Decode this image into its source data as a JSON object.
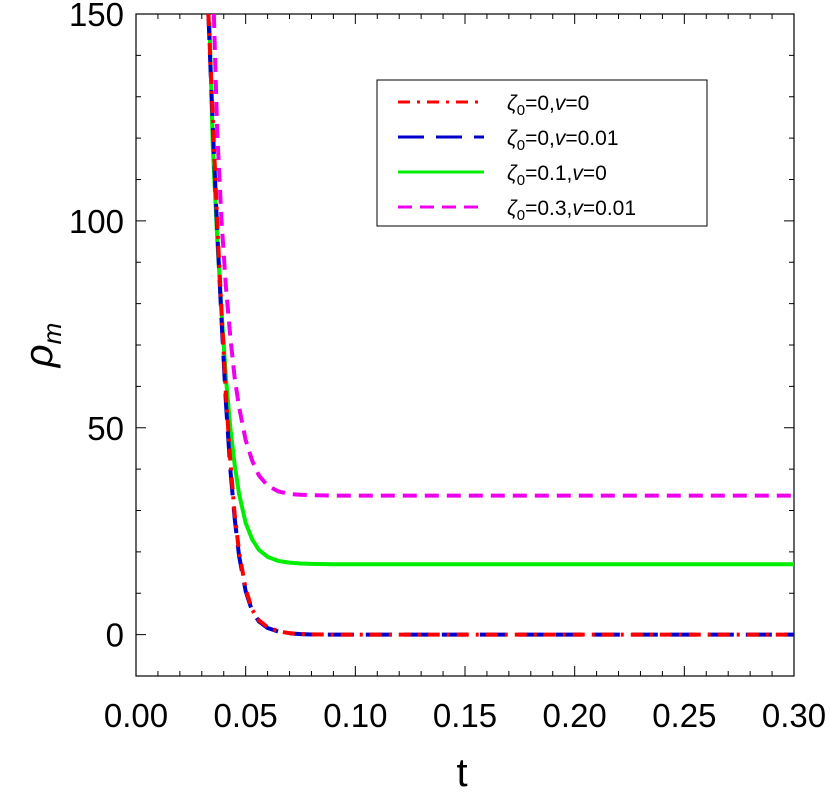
{
  "chart_data": {
    "type": "line",
    "title": "",
    "xlabel": "t",
    "ylabel_symbol": "ρ",
    "ylabel_subscript": "m",
    "xlim": [
      0.0,
      0.3
    ],
    "ylim": [
      -10,
      150
    ],
    "xticks": [
      0.0,
      0.05,
      0.1,
      0.15,
      0.2,
      0.25,
      0.3
    ],
    "xtick_labels": [
      "0.00",
      "0.05",
      "0.10",
      "0.15",
      "0.20",
      "0.25",
      "0.30"
    ],
    "yticks": [
      0,
      50,
      100,
      150
    ],
    "ytick_labels": [
      "0",
      "50",
      "100",
      "150"
    ],
    "grid": false,
    "legend_position": "top-right",
    "series": [
      {
        "name": "ζ0=0, v=0",
        "legend_parts": [
          "ζ",
          "0",
          "=0,",
          "v",
          "=0"
        ],
        "color": "#ff0000",
        "style": "dash-dot",
        "x": [
          0.033,
          0.035,
          0.037,
          0.039,
          0.041,
          0.043,
          0.045,
          0.047,
          0.05,
          0.053,
          0.056,
          0.06,
          0.065,
          0.07,
          0.075,
          0.08,
          0.09,
          0.1,
          0.15,
          0.2,
          0.25,
          0.3
        ],
        "y": [
          150,
          125,
          100,
          78,
          58,
          42,
          29,
          20,
          11,
          6,
          3.5,
          1.8,
          0.8,
          0.35,
          0.15,
          0.05,
          0,
          0,
          0,
          0,
          0,
          0
        ]
      },
      {
        "name": "ζ0=0, v=0.01",
        "legend_parts": [
          "ζ",
          "0",
          "=0,",
          "v",
          "=0.01"
        ],
        "color": "#0000cc",
        "style": "long-dash",
        "x": [
          0.033,
          0.035,
          0.037,
          0.039,
          0.041,
          0.043,
          0.045,
          0.047,
          0.05,
          0.053,
          0.056,
          0.06,
          0.065,
          0.07,
          0.075,
          0.08,
          0.09,
          0.1,
          0.15,
          0.2,
          0.25,
          0.3
        ],
        "y": [
          150,
          123,
          98,
          76,
          56,
          40,
          28,
          19,
          10.5,
          5.6,
          3.2,
          1.6,
          0.7,
          0.3,
          0.12,
          0.04,
          0,
          0,
          0,
          0,
          0,
          0
        ]
      },
      {
        "name": "ζ0=0.1, v=0",
        "legend_parts": [
          "ζ",
          "0",
          "=0.1,",
          "v",
          "=0"
        ],
        "color": "#00ee00",
        "style": "solid",
        "x": [
          0.0335,
          0.035,
          0.037,
          0.039,
          0.041,
          0.043,
          0.045,
          0.047,
          0.05,
          0.053,
          0.056,
          0.06,
          0.065,
          0.07,
          0.075,
          0.08,
          0.09,
          0.1,
          0.15,
          0.2,
          0.25,
          0.3
        ],
        "y": [
          148,
          118,
          96,
          78,
          62,
          50,
          41,
          34,
          27,
          23,
          20.5,
          18.8,
          17.8,
          17.4,
          17.2,
          17.1,
          17,
          17,
          17,
          17,
          17,
          17
        ]
      },
      {
        "name": "ζ0=0.3, v=0.01",
        "legend_parts": [
          "ζ",
          "0",
          "=0.3,",
          "v",
          "=0.01"
        ],
        "color": "#ee00ee",
        "style": "short-dash",
        "x": [
          0.0355,
          0.037,
          0.039,
          0.041,
          0.043,
          0.045,
          0.047,
          0.05,
          0.053,
          0.056,
          0.06,
          0.065,
          0.07,
          0.075,
          0.08,
          0.09,
          0.1,
          0.15,
          0.2,
          0.25,
          0.3
        ],
        "y": [
          150,
          122,
          100,
          84,
          72,
          62,
          55,
          47,
          42,
          38.5,
          36,
          34.6,
          34,
          33.8,
          33.7,
          33.6,
          33.6,
          33.6,
          33.6,
          33.6,
          33.6
        ]
      }
    ]
  }
}
